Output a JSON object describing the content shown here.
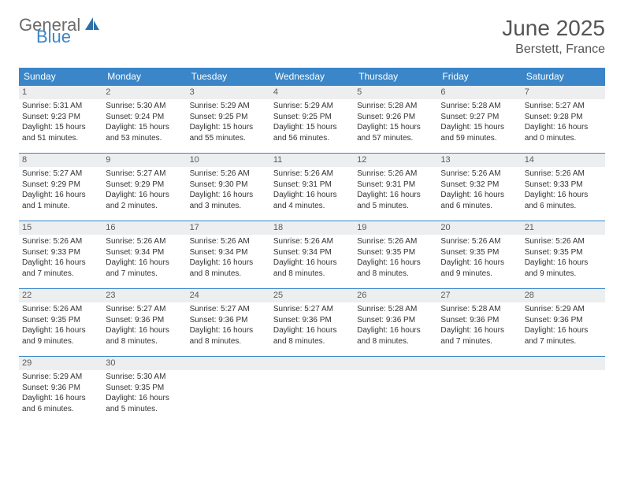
{
  "logo": {
    "text1": "General",
    "text2": "Blue",
    "icon_color": "#2f6fa8"
  },
  "header": {
    "month_year": "June 2025",
    "location": "Berstett, France"
  },
  "colors": {
    "header_bg": "#3a86c8",
    "rule": "#3a86c8",
    "daynum_bg": "#eceef0"
  },
  "day_labels": [
    "Sunday",
    "Monday",
    "Tuesday",
    "Wednesday",
    "Thursday",
    "Friday",
    "Saturday"
  ],
  "calendar": {
    "type": "table",
    "columns": 7,
    "weeks": [
      [
        {
          "d": "1",
          "sr": "5:31 AM",
          "ss": "9:23 PM",
          "dl": "15 hours and 51 minutes."
        },
        {
          "d": "2",
          "sr": "5:30 AM",
          "ss": "9:24 PM",
          "dl": "15 hours and 53 minutes."
        },
        {
          "d": "3",
          "sr": "5:29 AM",
          "ss": "9:25 PM",
          "dl": "15 hours and 55 minutes."
        },
        {
          "d": "4",
          "sr": "5:29 AM",
          "ss": "9:25 PM",
          "dl": "15 hours and 56 minutes."
        },
        {
          "d": "5",
          "sr": "5:28 AM",
          "ss": "9:26 PM",
          "dl": "15 hours and 57 minutes."
        },
        {
          "d": "6",
          "sr": "5:28 AM",
          "ss": "9:27 PM",
          "dl": "15 hours and 59 minutes."
        },
        {
          "d": "7",
          "sr": "5:27 AM",
          "ss": "9:28 PM",
          "dl": "16 hours and 0 minutes."
        }
      ],
      [
        {
          "d": "8",
          "sr": "5:27 AM",
          "ss": "9:29 PM",
          "dl": "16 hours and 1 minute."
        },
        {
          "d": "9",
          "sr": "5:27 AM",
          "ss": "9:29 PM",
          "dl": "16 hours and 2 minutes."
        },
        {
          "d": "10",
          "sr": "5:26 AM",
          "ss": "9:30 PM",
          "dl": "16 hours and 3 minutes."
        },
        {
          "d": "11",
          "sr": "5:26 AM",
          "ss": "9:31 PM",
          "dl": "16 hours and 4 minutes."
        },
        {
          "d": "12",
          "sr": "5:26 AM",
          "ss": "9:31 PM",
          "dl": "16 hours and 5 minutes."
        },
        {
          "d": "13",
          "sr": "5:26 AM",
          "ss": "9:32 PM",
          "dl": "16 hours and 6 minutes."
        },
        {
          "d": "14",
          "sr": "5:26 AM",
          "ss": "9:33 PM",
          "dl": "16 hours and 6 minutes."
        }
      ],
      [
        {
          "d": "15",
          "sr": "5:26 AM",
          "ss": "9:33 PM",
          "dl": "16 hours and 7 minutes."
        },
        {
          "d": "16",
          "sr": "5:26 AM",
          "ss": "9:34 PM",
          "dl": "16 hours and 7 minutes."
        },
        {
          "d": "17",
          "sr": "5:26 AM",
          "ss": "9:34 PM",
          "dl": "16 hours and 8 minutes."
        },
        {
          "d": "18",
          "sr": "5:26 AM",
          "ss": "9:34 PM",
          "dl": "16 hours and 8 minutes."
        },
        {
          "d": "19",
          "sr": "5:26 AM",
          "ss": "9:35 PM",
          "dl": "16 hours and 8 minutes."
        },
        {
          "d": "20",
          "sr": "5:26 AM",
          "ss": "9:35 PM",
          "dl": "16 hours and 9 minutes."
        },
        {
          "d": "21",
          "sr": "5:26 AM",
          "ss": "9:35 PM",
          "dl": "16 hours and 9 minutes."
        }
      ],
      [
        {
          "d": "22",
          "sr": "5:26 AM",
          "ss": "9:35 PM",
          "dl": "16 hours and 9 minutes."
        },
        {
          "d": "23",
          "sr": "5:27 AM",
          "ss": "9:36 PM",
          "dl": "16 hours and 8 minutes."
        },
        {
          "d": "24",
          "sr": "5:27 AM",
          "ss": "9:36 PM",
          "dl": "16 hours and 8 minutes."
        },
        {
          "d": "25",
          "sr": "5:27 AM",
          "ss": "9:36 PM",
          "dl": "16 hours and 8 minutes."
        },
        {
          "d": "26",
          "sr": "5:28 AM",
          "ss": "9:36 PM",
          "dl": "16 hours and 8 minutes."
        },
        {
          "d": "27",
          "sr": "5:28 AM",
          "ss": "9:36 PM",
          "dl": "16 hours and 7 minutes."
        },
        {
          "d": "28",
          "sr": "5:29 AM",
          "ss": "9:36 PM",
          "dl": "16 hours and 7 minutes."
        }
      ],
      [
        {
          "d": "29",
          "sr": "5:29 AM",
          "ss": "9:36 PM",
          "dl": "16 hours and 6 minutes."
        },
        {
          "d": "30",
          "sr": "5:30 AM",
          "ss": "9:35 PM",
          "dl": "16 hours and 5 minutes."
        },
        null,
        null,
        null,
        null,
        null
      ]
    ]
  },
  "labels": {
    "sunrise": "Sunrise:",
    "sunset": "Sunset:",
    "daylight": "Daylight:"
  }
}
